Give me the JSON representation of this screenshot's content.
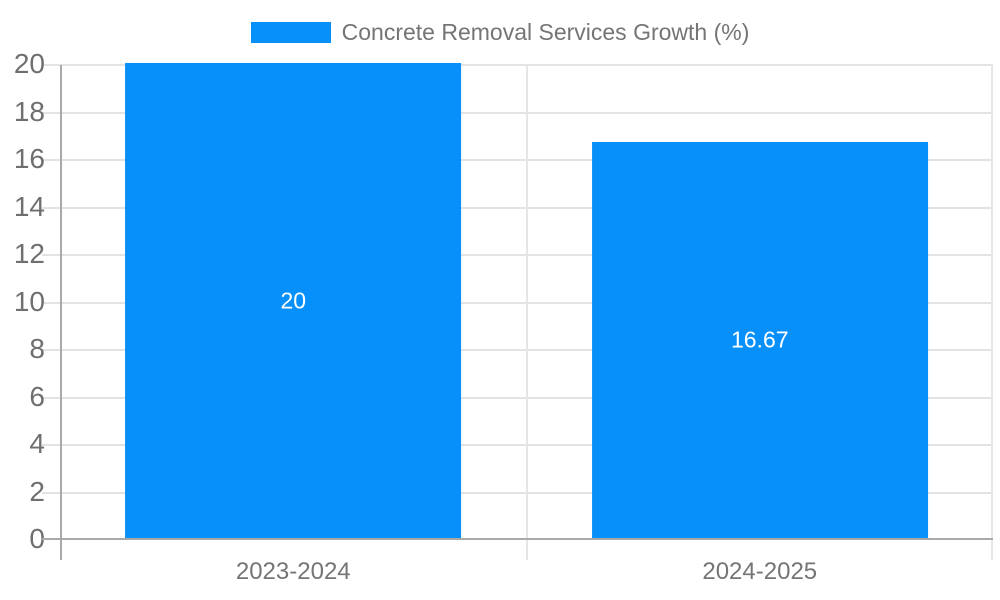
{
  "colors": {
    "bar": "#0890fa",
    "grid": "#e3e3e3",
    "axis": "#a9a9a9",
    "divider": "#e6e6e6",
    "tick_text": "#6f6f6f",
    "label_text": "#757575",
    "bar_label_text": "#ffffff",
    "background": "#ffffff"
  },
  "chart_data": {
    "type": "bar",
    "title": "",
    "legend_label": "Concrete Removal Services Growth (%)",
    "legend_position": "top",
    "categories": [
      "2023-2024",
      "2024-2025"
    ],
    "series": [
      {
        "name": "Concrete Removal Services Growth (%)",
        "values": [
          20,
          16.67
        ],
        "value_labels": [
          "20",
          "16.67"
        ]
      }
    ],
    "xlabel": "",
    "ylabel": "",
    "ylim": [
      0,
      20
    ],
    "yticks": [
      0,
      2,
      4,
      6,
      8,
      10,
      12,
      14,
      16,
      18,
      20
    ],
    "grid": true,
    "bar_label_position": "center"
  }
}
